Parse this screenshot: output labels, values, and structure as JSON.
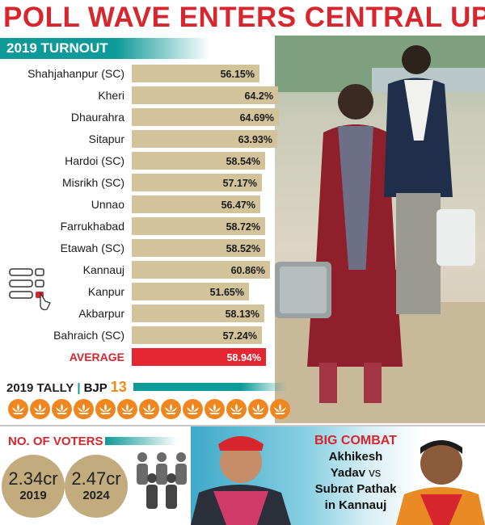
{
  "headline": "POLL WAVE ENTERS CENTRAL UP",
  "turnout_label": "2019 TURNOUT",
  "chart_data": {
    "type": "bar",
    "orientation": "horizontal",
    "title": "2019 TURNOUT",
    "categories": [
      "Shahjahanpur (SC)",
      "Kheri",
      "Dhaurahra",
      "Sitapur",
      "Hardoi (SC)",
      "Misrikh (SC)",
      "Unnao",
      "Farrukhabad",
      "Etawah (SC)",
      "Kannauj",
      "Kanpur",
      "Akbarpur",
      "Bahraich (SC)",
      "AVERAGE"
    ],
    "values": [
      56.15,
      64.2,
      64.69,
      63.93,
      58.54,
      57.17,
      56.47,
      58.72,
      58.52,
      60.86,
      51.65,
      58.13,
      57.24,
      58.94
    ],
    "value_labels": [
      "56.15%",
      "64.2%",
      "64.69%",
      "63.93%",
      "58.54%",
      "57.17%",
      "56.47%",
      "58.72%",
      "58.52%",
      "60.86%",
      "51.65%",
      "58.13%",
      "57.24%",
      "58.94%"
    ],
    "highlight_category": "AVERAGE",
    "bar_color": "#d2c39b",
    "highlight_color": "#e3262f",
    "xlim": [
      0,
      64.69
    ]
  },
  "tally": {
    "year": "2019 TALLY",
    "separator": "|",
    "party": "BJP",
    "count": "13",
    "seats_won": 13,
    "symbol_color": "#f2861e"
  },
  "voters": {
    "label": "NO. OF VOTERS",
    "items": [
      {
        "value": "2.34cr",
        "year": "2019"
      },
      {
        "value": "2.47cr",
        "year": "2024"
      }
    ]
  },
  "combat": {
    "title": "BIG COMBAT",
    "line1": "Akhikesh",
    "line2a": "Yadav",
    "vs": "vs",
    "line3": "Subrat Pathak",
    "line4": "in Kannauj"
  },
  "colors": {
    "accent_red": "#d7262e",
    "teal": "#0d9a98",
    "tan": "#c2ac7e"
  }
}
